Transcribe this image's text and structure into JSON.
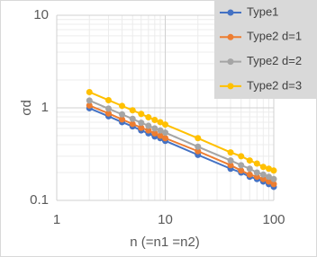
{
  "chart_data": {
    "type": "line",
    "x_label": "n (=n1 =n2)",
    "y_label": "σd",
    "x": [
      2,
      3,
      4,
      5,
      6,
      7,
      8,
      9,
      10,
      20,
      40,
      50,
      60,
      70,
      80,
      90,
      100
    ],
    "series": [
      {
        "name": "Type1",
        "color": "#4472c4",
        "values": [
          0.99,
          0.81,
          0.7,
          0.63,
          0.57,
          0.53,
          0.49,
          0.47,
          0.44,
          0.31,
          0.22,
          0.2,
          0.18,
          0.17,
          0.16,
          0.15,
          0.14
        ]
      },
      {
        "name": "Type2 d=1",
        "color": "#ed7d31",
        "values": [
          1.06,
          0.87,
          0.75,
          0.67,
          0.61,
          0.57,
          0.53,
          0.5,
          0.47,
          0.34,
          0.24,
          0.21,
          0.19,
          0.18,
          0.17,
          0.16,
          0.15
        ]
      },
      {
        "name": "Type2 d=2",
        "color": "#a5a5a5",
        "values": [
          1.2,
          0.98,
          0.85,
          0.76,
          0.69,
          0.64,
          0.6,
          0.57,
          0.54,
          0.38,
          0.27,
          0.24,
          0.22,
          0.2,
          0.19,
          0.18,
          0.17
        ]
      },
      {
        "name": "Type2 d=3",
        "color": "#ffc000",
        "values": [
          1.48,
          1.21,
          1.05,
          0.94,
          0.86,
          0.79,
          0.74,
          0.7,
          0.66,
          0.47,
          0.33,
          0.3,
          0.27,
          0.25,
          0.23,
          0.22,
          0.21
        ]
      }
    ],
    "xlim": [
      1,
      100
    ],
    "ylim": [
      0.1,
      10
    ],
    "xticks": [
      1,
      10,
      100
    ],
    "yticks": [
      0.1,
      1,
      10
    ],
    "xscale": "log",
    "yscale": "log",
    "grid": true,
    "legend": "top-right"
  }
}
